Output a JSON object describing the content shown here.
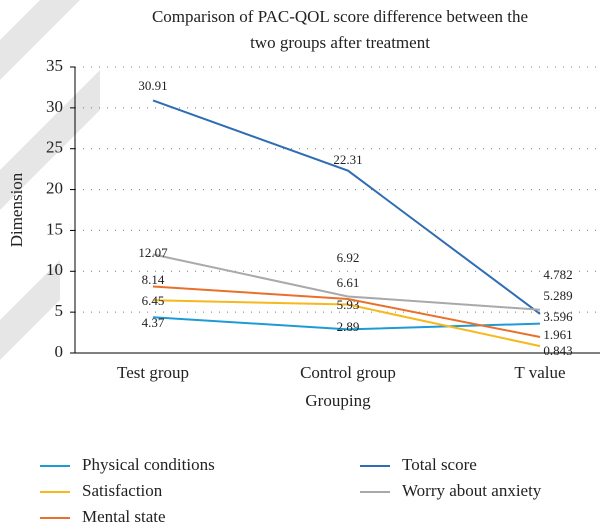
{
  "chart_data": {
    "type": "line",
    "title": [
      "Comparison of PAC-QOL score difference between the",
      "two groups after treatment"
    ],
    "xlabel": "Grouping",
    "ylabel": "Dimension",
    "categories": [
      "Test group",
      "Control group",
      "T value"
    ],
    "series": [
      {
        "name": "Physical conditions",
        "color": "#1e9bd7",
        "values": [
          4.37,
          2.89,
          3.596
        ]
      },
      {
        "name": "Total score",
        "color": "#2e6db4",
        "values": [
          30.91,
          22.31,
          4.782
        ]
      },
      {
        "name": "Satisfaction",
        "color": "#f6b81c",
        "values": [
          6.45,
          5.93,
          0.843
        ]
      },
      {
        "name": "Worry about anxiety",
        "color": "#a9a9a9",
        "values": [
          12.07,
          6.92,
          5.289
        ]
      },
      {
        "name": "Mental state",
        "color": "#e8702a",
        "values": [
          8.14,
          6.61,
          1.961
        ]
      }
    ],
    "ylim": [
      0,
      35
    ],
    "yticks": [
      0,
      5,
      10,
      15,
      20,
      25,
      30,
      35
    ],
    "grid": true
  }
}
